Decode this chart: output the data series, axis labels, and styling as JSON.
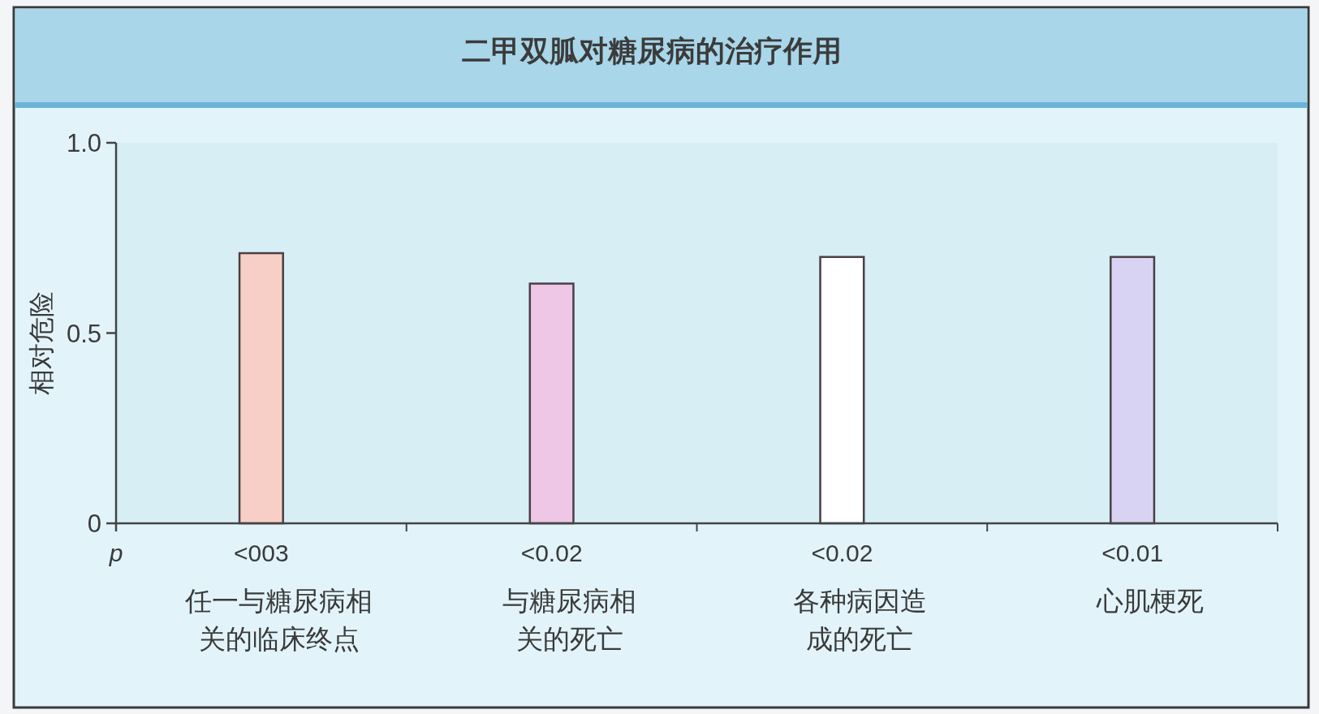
{
  "chart_data": {
    "type": "bar",
    "title": "二甲双胍对糖尿病的治疗作用",
    "ylabel": "相对危险",
    "categories": [
      "任一与糖尿病相关的临床终点",
      "与糖尿病相关的死亡",
      "各种病因造成的死亡",
      "心肌梗死"
    ],
    "values": [
      0.71,
      0.63,
      0.7,
      0.7
    ],
    "colors": [
      "#f8cfc6",
      "#eec6e6",
      "#ffffff",
      "#d9d3f3"
    ],
    "ylim": [
      0,
      1
    ],
    "yticks": [
      0,
      0.5,
      {
        "value": 1,
        "label": "1.0"
      }
    ],
    "annotations": [
      "p",
      "<003",
      "<0.02",
      "<0.02",
      "<0.01"
    ]
  }
}
